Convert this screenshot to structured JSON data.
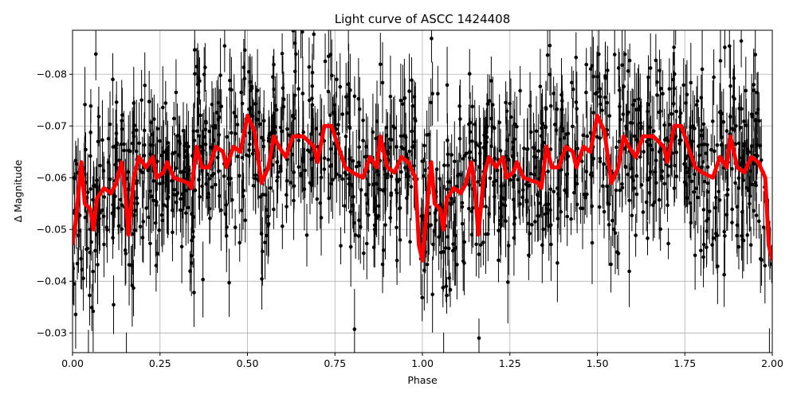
{
  "chart_data": {
    "type": "scatter",
    "title": "Light curve of ASCC 1424408",
    "xlabel": "Phase",
    "ylabel": "Δ Magnitude",
    "xlim": [
      0,
      2
    ],
    "ylim": [
      -0.0262,
      -0.0885
    ],
    "y_inverted": true,
    "grid": true,
    "xticks": [
      "0.00",
      "0.25",
      "0.50",
      "0.75",
      "1.00",
      "1.25",
      "1.50",
      "1.75",
      "2.00"
    ],
    "xtick_values": [
      0,
      0.25,
      0.5,
      0.75,
      1,
      1.25,
      1.5,
      1.75,
      2
    ],
    "yticks": [
      "−0.08",
      "−0.07",
      "−0.06",
      "−0.05",
      "−0.04",
      "−0.03"
    ],
    "ytick_values": [
      -0.08,
      -0.07,
      -0.06,
      -0.05,
      -0.04,
      -0.03
    ],
    "colors": {
      "points": "#000000",
      "model": "#ff0000"
    },
    "observations": {
      "marker": "circle",
      "error_bars": true,
      "scatter_sd": 0.009
    },
    "series": [
      {
        "style": "smoothed-line",
        "x": [
          0.0,
          0.01,
          0.025,
          0.035,
          0.05,
          0.06,
          0.07,
          0.09,
          0.11,
          0.125,
          0.14,
          0.15,
          0.16,
          0.175,
          0.19,
          0.21,
          0.23,
          0.24,
          0.26,
          0.27,
          0.29,
          0.33,
          0.34,
          0.355,
          0.37,
          0.39,
          0.41,
          0.43,
          0.44,
          0.46,
          0.48,
          0.5,
          0.52,
          0.54,
          0.56,
          0.575,
          0.59,
          0.61,
          0.63,
          0.66,
          0.69,
          0.7,
          0.72,
          0.74,
          0.76,
          0.78,
          0.8,
          0.83,
          0.85,
          0.87,
          0.88,
          0.9,
          0.92,
          0.94,
          0.96,
          0.98,
          0.99,
          1.0,
          1.01,
          1.025,
          1.035,
          1.05,
          1.06,
          1.07,
          1.09,
          1.11,
          1.125,
          1.14,
          1.15,
          1.16,
          1.175,
          1.19,
          1.21,
          1.23,
          1.24,
          1.26,
          1.27,
          1.29,
          1.33,
          1.34,
          1.355,
          1.37,
          1.39,
          1.41,
          1.43,
          1.44,
          1.46,
          1.48,
          1.5,
          1.52,
          1.54,
          1.56,
          1.575,
          1.59,
          1.61,
          1.63,
          1.66,
          1.69,
          1.7,
          1.72,
          1.74,
          1.76,
          1.78,
          1.8,
          1.83,
          1.85,
          1.87,
          1.88,
          1.9,
          1.92,
          1.94,
          1.96,
          1.98,
          1.99,
          2.0
        ],
        "y": [
          -0.047,
          -0.052,
          -0.063,
          -0.055,
          -0.054,
          -0.05,
          -0.056,
          -0.058,
          -0.057,
          -0.059,
          -0.063,
          -0.058,
          -0.049,
          -0.06,
          -0.064,
          -0.062,
          -0.064,
          -0.06,
          -0.061,
          -0.063,
          -0.06,
          -0.059,
          -0.058,
          -0.066,
          -0.062,
          -0.062,
          -0.066,
          -0.065,
          -0.062,
          -0.066,
          -0.065,
          -0.072,
          -0.069,
          -0.059,
          -0.062,
          -0.068,
          -0.066,
          -0.064,
          -0.068,
          -0.068,
          -0.066,
          -0.063,
          -0.07,
          -0.07,
          -0.066,
          -0.062,
          -0.061,
          -0.06,
          -0.064,
          -0.062,
          -0.068,
          -0.062,
          -0.061,
          -0.064,
          -0.063,
          -0.06,
          -0.047,
          -0.044,
          -0.052,
          -0.063,
          -0.055,
          -0.054,
          -0.05,
          -0.056,
          -0.058,
          -0.057,
          -0.059,
          -0.063,
          -0.058,
          -0.049,
          -0.06,
          -0.064,
          -0.062,
          -0.064,
          -0.06,
          -0.061,
          -0.063,
          -0.06,
          -0.059,
          -0.058,
          -0.066,
          -0.062,
          -0.062,
          -0.066,
          -0.065,
          -0.062,
          -0.066,
          -0.065,
          -0.072,
          -0.069,
          -0.059,
          -0.062,
          -0.068,
          -0.066,
          -0.064,
          -0.068,
          -0.068,
          -0.066,
          -0.063,
          -0.07,
          -0.07,
          -0.066,
          -0.062,
          -0.061,
          -0.06,
          -0.064,
          -0.062,
          -0.068,
          -0.062,
          -0.061,
          -0.064,
          -0.063,
          -0.06,
          -0.047,
          -0.044
        ]
      }
    ]
  }
}
